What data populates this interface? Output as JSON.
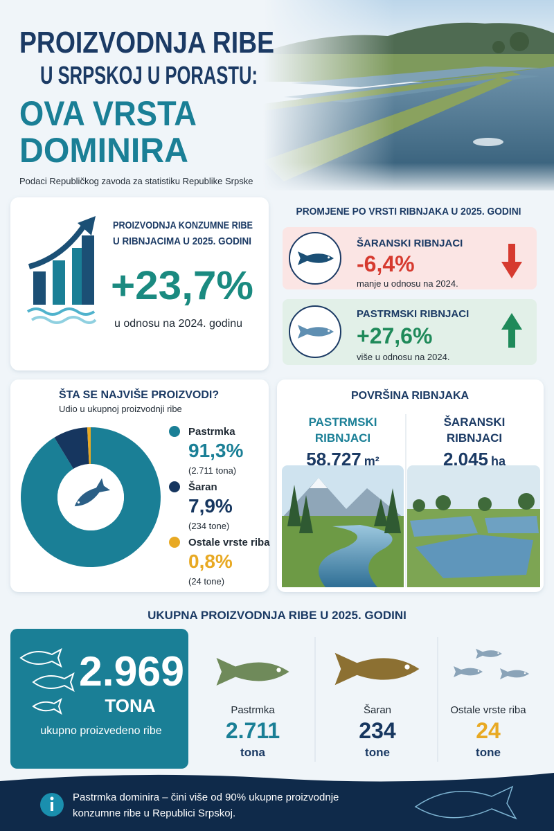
{
  "header": {
    "title_lines": [
      "PROIZVODNJA RIBE",
      "U SRPSKOJ U PORASTU:",
      "OVA VRSTA",
      "DOMINIRA"
    ],
    "source": "Podaci Republičkog zavoda za statistiku Republike Srpske"
  },
  "growth": {
    "title_lines": [
      "PROIZVODNJA KONZUMNE RIBE",
      "U RIBNJACIMA U 2025. GODINI"
    ],
    "value": "+23,7%",
    "note": "u odnosu na 2024. godinu"
  },
  "changes": {
    "title": "PROMJENE PO VRSTI RIBNJAKA U 2025. GODINI",
    "items": [
      {
        "name": "ŠARANSKI RIBNJACI",
        "value": "-6,4%",
        "note": "manje u odnosu na 2024."
      },
      {
        "name": "PASTRMSKI RIBNJACI",
        "value": "+27,6%",
        "note": "više u odnosu na 2024."
      }
    ]
  },
  "share": {
    "title": "ŠTA SE NAJVIŠE PROIZVODI?",
    "subtitle": "Udio u ukupnoj proizvodnji ribe",
    "items": [
      {
        "name": "Pastrmka",
        "value": 91.3,
        "value_label": "91,3%",
        "amount": "(2.711 tona)",
        "color": "#1a7f96"
      },
      {
        "name": "Šaran",
        "value": 7.9,
        "value_label": "7,9%",
        "amount": "(234 tone)",
        "color": "#16365f"
      },
      {
        "name": "Ostale vrste riba",
        "value": 0.8,
        "value_label": "0,8%",
        "amount": "(24 tone)",
        "color": "#e8a923"
      }
    ]
  },
  "area": {
    "title": "POVRŠINA RIBNJAKA",
    "items": [
      {
        "name_lines": [
          "PASTRMSKI",
          "RIBNJACI"
        ],
        "value": "58.727",
        "unit": "m²"
      },
      {
        "name_lines": [
          "ŠARANSKI",
          "RIBNJACI"
        ],
        "value": "2.045",
        "unit": "ha"
      }
    ]
  },
  "total": {
    "title": "UKUPNA PROIZVODNJA RIBE U 2025. GODINI",
    "value": "2.969",
    "unit": "TONA",
    "note": "ukupno proizvedeno ribe",
    "items": [
      {
        "name": "Pastrmka",
        "value": "2.711",
        "unit": "tona"
      },
      {
        "name": "Šaran",
        "value": "234",
        "unit": "tone"
      },
      {
        "name": "Ostale vrste riba",
        "value": "24",
        "unit": "tone"
      }
    ]
  },
  "footer": {
    "text_lines": [
      "Pastrmka dominira – čini više od 90% ukupne proizvodnje",
      "konzumne ribe u Republici Srpskoj."
    ]
  }
}
